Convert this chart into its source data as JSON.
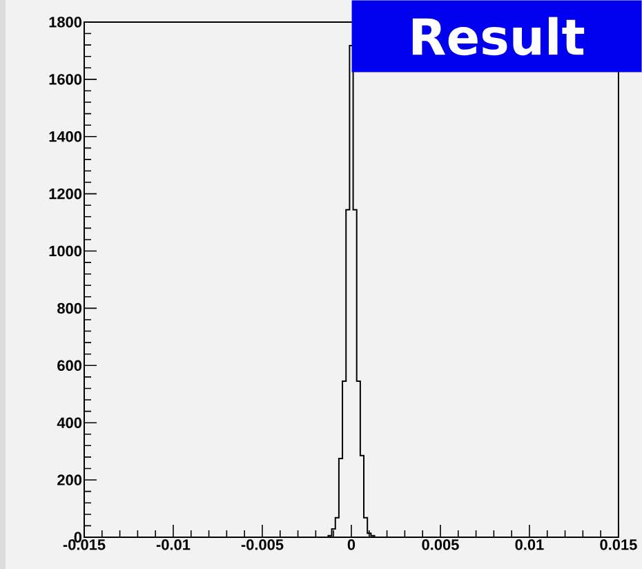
{
  "chart_data": {
    "type": "histogram",
    "title": "Result",
    "bins": [
      -0.0013,
      -0.0011,
      -0.0009,
      -0.0007,
      -0.0005,
      -0.0003,
      -0.0001,
      0.0001,
      0.0003,
      0.0005,
      0.0007,
      0.0009,
      0.0011,
      0.0013
    ],
    "values": [
      5,
      29,
      68,
      275,
      545,
      1144,
      1718,
      1144,
      545,
      285,
      68,
      14,
      5
    ],
    "color": "#000000",
    "xlim": [
      -0.015,
      0.015
    ],
    "xticks": [
      -0.015,
      -0.01,
      -0.005,
      0,
      0.005,
      0.01,
      0.015
    ],
    "ylim": [
      0,
      1800
    ],
    "yticks": [
      0,
      200,
      400,
      600,
      800,
      1000,
      1200,
      1400,
      1600,
      1800
    ],
    "grid": false
  }
}
